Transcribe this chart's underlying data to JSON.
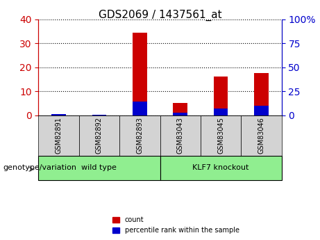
{
  "title": "GDS2069 / 1437561_at",
  "categories": [
    "GSM82891",
    "GSM82892",
    "GSM82893",
    "GSM83043",
    "GSM83045",
    "GSM83046"
  ],
  "count_values": [
    0.5,
    0.3,
    34.5,
    5.0,
    16.0,
    17.5
  ],
  "percentile_values": [
    1.0,
    0.3,
    14.5,
    2.5,
    7.0,
    9.5
  ],
  "bar_color": "#cc0000",
  "percentile_color": "#0000cc",
  "left_ylim": [
    0,
    40
  ],
  "right_ylim": [
    0,
    100
  ],
  "left_yticks": [
    0,
    10,
    20,
    30,
    40
  ],
  "right_yticks": [
    0,
    25,
    50,
    75,
    100
  ],
  "right_yticklabels": [
    "0",
    "25",
    "50",
    "75",
    "100%"
  ],
  "groups": [
    {
      "label": "wild type",
      "indices": [
        0,
        1,
        2
      ],
      "color": "#90ee90"
    },
    {
      "label": "KLF7 knockout",
      "indices": [
        3,
        4,
        5
      ],
      "color": "#90ee90"
    }
  ],
  "group_label_prefix": "genotype/variation",
  "tick_color_left": "#cc0000",
  "tick_color_right": "#0000cc",
  "bar_width": 0.35,
  "background_color": "#ffffff",
  "plot_bg_color": "#ffffff",
  "grid_color": "#000000",
  "label_area_color": "#d3d3d3",
  "legend_items": [
    "count",
    "percentile rank within the sample"
  ]
}
